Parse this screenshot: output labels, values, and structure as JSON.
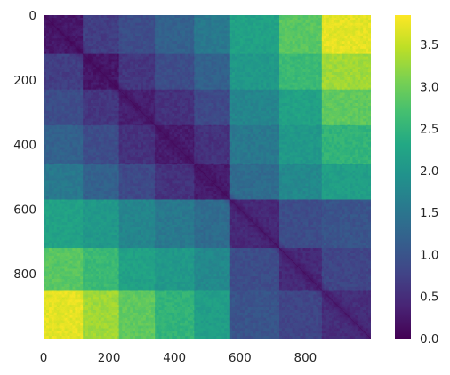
{
  "chart_data": {
    "type": "heatmap",
    "title": "",
    "xlabel": "",
    "ylabel": "",
    "grid": false,
    "n": 1000,
    "xlim": [
      0,
      1000
    ],
    "ylim": [
      1000,
      0
    ],
    "x_ticks": [
      0,
      200,
      400,
      600,
      800
    ],
    "x_tick_labels": [
      "0",
      "200",
      "400",
      "600",
      "800"
    ],
    "y_ticks": [
      0,
      200,
      400,
      600,
      800
    ],
    "y_tick_labels": [
      "0",
      "200",
      "400",
      "600",
      "800"
    ],
    "colorbar": {
      "range": [
        0.0,
        3.85
      ],
      "ticks": [
        0.0,
        0.5,
        1.0,
        1.5,
        2.0,
        2.5,
        3.0,
        3.5
      ],
      "tick_labels": [
        "0.0",
        "0.5",
        "1.0",
        "1.5",
        "2.0",
        "2.5",
        "3.0",
        "3.5"
      ],
      "colormap": "viridis",
      "colors": [
        "#440154",
        "#482475",
        "#414487",
        "#355f8d",
        "#2a788e",
        "#21918c",
        "#22a884",
        "#44bf70",
        "#7ad151",
        "#bddf26",
        "#fde725"
      ]
    },
    "block_edges": [
      0,
      120,
      230,
      340,
      460,
      570,
      720,
      850,
      1000
    ],
    "block_values": [
      [
        0.25,
        0.7,
        0.9,
        1.2,
        1.55,
        2.2,
        2.85,
        3.7
      ],
      [
        0.7,
        0.25,
        0.6,
        0.9,
        1.2,
        2.05,
        2.6,
        3.3
      ],
      [
        0.9,
        0.6,
        0.35,
        0.55,
        0.85,
        1.75,
        2.2,
        2.9
      ],
      [
        1.2,
        0.9,
        0.55,
        0.3,
        0.55,
        1.55,
        2.05,
        2.5
      ],
      [
        1.55,
        1.2,
        0.85,
        0.55,
        0.3,
        1.35,
        1.8,
        2.15
      ],
      [
        2.2,
        2.05,
        1.75,
        1.55,
        1.35,
        0.45,
        0.9,
        1.0
      ],
      [
        2.85,
        2.6,
        2.2,
        2.05,
        1.8,
        0.9,
        0.45,
        0.8
      ],
      [
        3.7,
        3.3,
        2.9,
        2.5,
        2.15,
        1.0,
        0.8,
        0.5
      ]
    ]
  }
}
